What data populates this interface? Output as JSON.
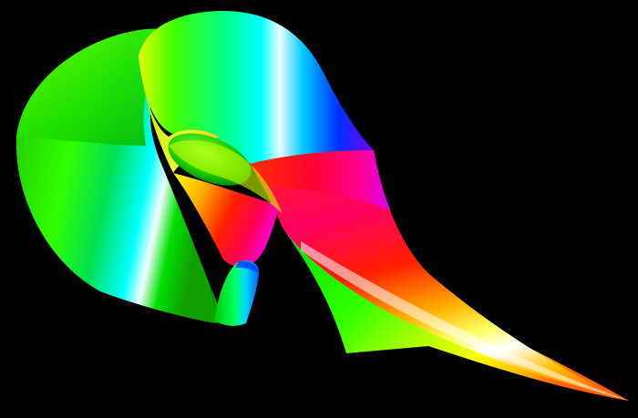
{
  "scene": {
    "background": "#000000",
    "subject": "rendered-3d-parametric-surface",
    "palette": [
      "#00ff00",
      "#00ffff",
      "#0000ff",
      "#ff00ff",
      "#ff0000",
      "#ffff00",
      "#ff8000",
      "#ffffff"
    ]
  }
}
